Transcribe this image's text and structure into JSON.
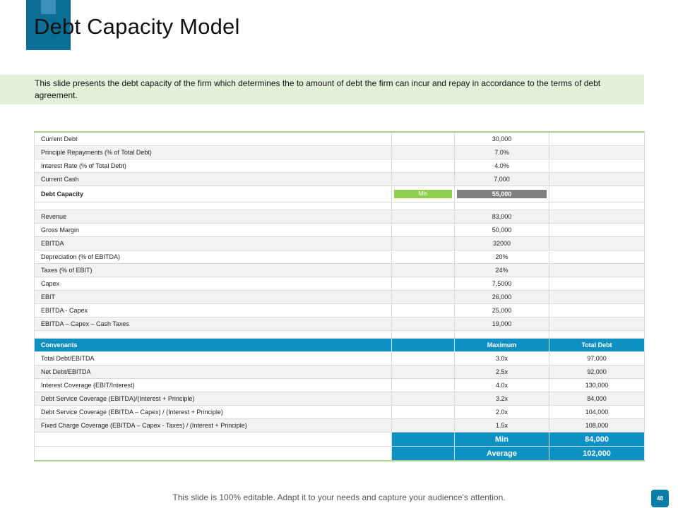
{
  "slide": {
    "title": "Debt Capacity Model",
    "intro": "This slide presents the debt capacity of the firm which determines the to amount of debt the firm can incur and repay in accordance to the terms of debt agreement.",
    "footer": "This slide is 100% editable. Adapt it to your needs and capture your audience's attention.",
    "page_number": "48"
  },
  "colors": {
    "accent": "#0b6e94",
    "table_blue": "#0e91c2",
    "intro_bg": "#e2f0d9",
    "min_pill": "#8fcf4e",
    "capacity_pill": "#7f7f7f"
  },
  "table": {
    "top_rows": [
      {
        "label": "Current Debt",
        "value": "30,000"
      },
      {
        "label": "Principle Repayments (% of Total Debt)",
        "value": "7.0%"
      },
      {
        "label": "Interest Rate (% of Total Debt)",
        "value": "4.0%"
      },
      {
        "label": "Current Cash",
        "value": "7,000"
      }
    ],
    "capacity": {
      "label": "Debt Capacity",
      "min_label": "Min",
      "value": "55,000"
    },
    "mid_rows": [
      {
        "label": "Revenue",
        "value": "83,000"
      },
      {
        "label": "Gross Margin",
        "value": "50,000"
      },
      {
        "label": "EBITDA",
        "value": "32000"
      },
      {
        "label": "Depreciation (% of EBITDA)",
        "value": "20%"
      },
      {
        "label": "Taxes (% of EBIT)",
        "value": "24%"
      },
      {
        "label": "Capex",
        "value": "7,5000"
      },
      {
        "label": "EBIT",
        "value": "26,000"
      },
      {
        "label": "EBITDA - Capex",
        "value": "25,000"
      },
      {
        "label": "EBITDA – Capex – Cash Taxes",
        "value": "19,000"
      }
    ],
    "covenants_header": {
      "label": "Convenants",
      "col1": "Maximum",
      "col2": "Total Debt"
    },
    "covenants": [
      {
        "label": "Total Debt/EBITDA",
        "max": "3.0x",
        "total": "97,000"
      },
      {
        "label": "Net Debt/EBITDA",
        "max": "2.5x",
        "total": "92,000"
      },
      {
        "label": "Interest Coverage (EBIT/Interest)",
        "max": "4.0x",
        "total": "130,000"
      },
      {
        "label": "Debt Service Coverage (EBITDA)/(Interest + Principle)",
        "max": "3.2x",
        "total": "84,000"
      },
      {
        "label": "Debt Service Coverage (EBITDA – Capex) / (Interest + Principle)",
        "max": "2.0x",
        "total": "104,000"
      },
      {
        "label": "Fixed Charge Coverage (EBITDA – Capex - Taxes) / (Interest + Principle)",
        "max": "1.5x",
        "total": "108,000"
      }
    ],
    "summary": [
      {
        "label": "Min",
        "value": "84,000"
      },
      {
        "label": "Average",
        "value": "102,000"
      }
    ]
  }
}
